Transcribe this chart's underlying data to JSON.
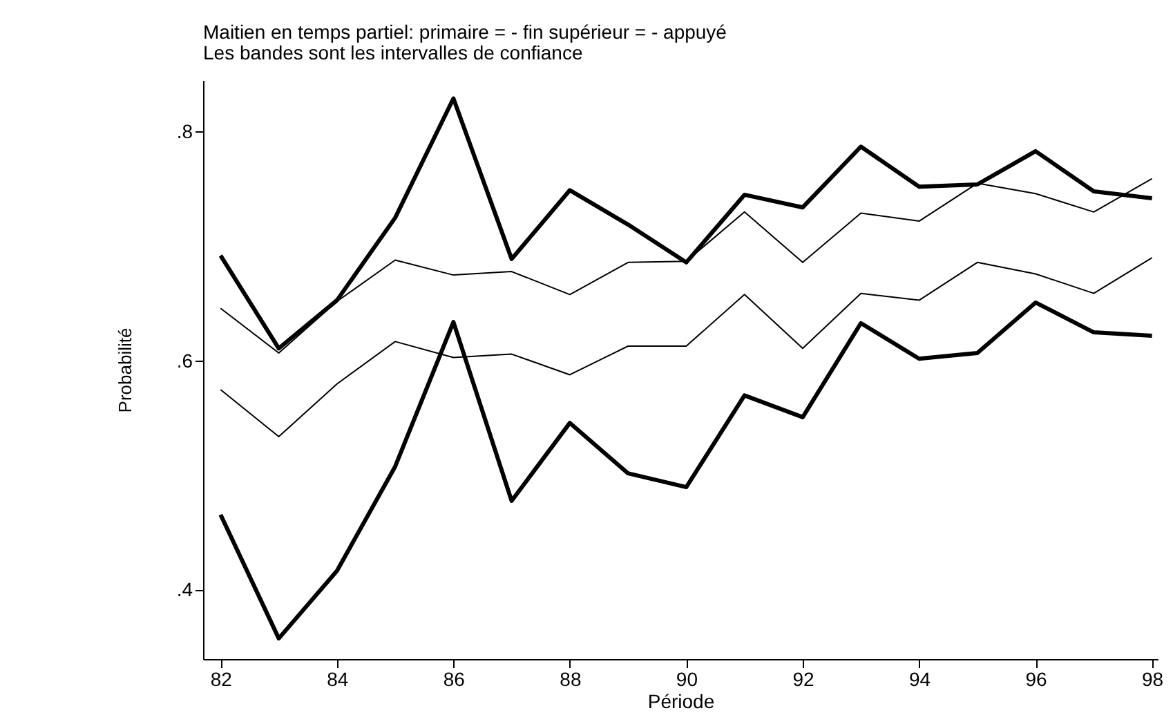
{
  "chart_data": {
    "type": "line",
    "title": "Maitien en temps partiel: primaire = - fin supérieur = - appuyé",
    "subtitle": "Les bandes sont les intervalles de confiance",
    "xlabel": "Période",
    "ylabel": "Probabilité",
    "x": [
      82,
      83,
      84,
      85,
      86,
      87,
      88,
      89,
      90,
      91,
      92,
      93,
      94,
      95,
      96,
      97,
      98
    ],
    "series": [
      {
        "color": "#000000",
        "values": [
          0.692,
          0.611,
          0.653,
          0.725,
          0.829,
          0.689,
          0.749,
          0.719,
          0.686,
          0.745,
          0.734,
          0.787,
          0.752,
          0.754,
          0.783,
          0.748,
          0.742
        ]
      },
      {
        "color": "#000000",
        "values": [
          0.646,
          0.607,
          0.652,
          0.688,
          0.675,
          0.678,
          0.658,
          0.686,
          0.687,
          0.73,
          0.686,
          0.729,
          0.722,
          0.755,
          0.746,
          0.73,
          0.759
        ]
      },
      {
        "color": "#000000",
        "values": [
          0.575,
          0.534,
          0.58,
          0.617,
          0.603,
          0.606,
          0.588,
          0.613,
          0.613,
          0.658,
          0.611,
          0.659,
          0.653,
          0.686,
          0.676,
          0.659,
          0.69
        ]
      },
      {
        "color": "#000000",
        "values": [
          0.466,
          0.358,
          0.417,
          0.508,
          0.634,
          0.478,
          0.546,
          0.502,
          0.49,
          0.57,
          0.551,
          0.633,
          0.602,
          0.607,
          0.651,
          0.625,
          0.622
        ]
      }
    ],
    "xlim": [
      81.7,
      98.1
    ],
    "xticks": [
      82,
      84,
      86,
      88,
      90,
      92,
      94,
      96,
      98
    ],
    "ylim": [
      0.34,
      0.845
    ],
    "yticks": [
      {
        "value": 0.4,
        "label": ".4"
      },
      {
        "value": 0.6,
        "label": ".6"
      },
      {
        "value": 0.8,
        "label": ".8"
      }
    ],
    "grid": false,
    "marker": "none",
    "line_style": "solid"
  }
}
